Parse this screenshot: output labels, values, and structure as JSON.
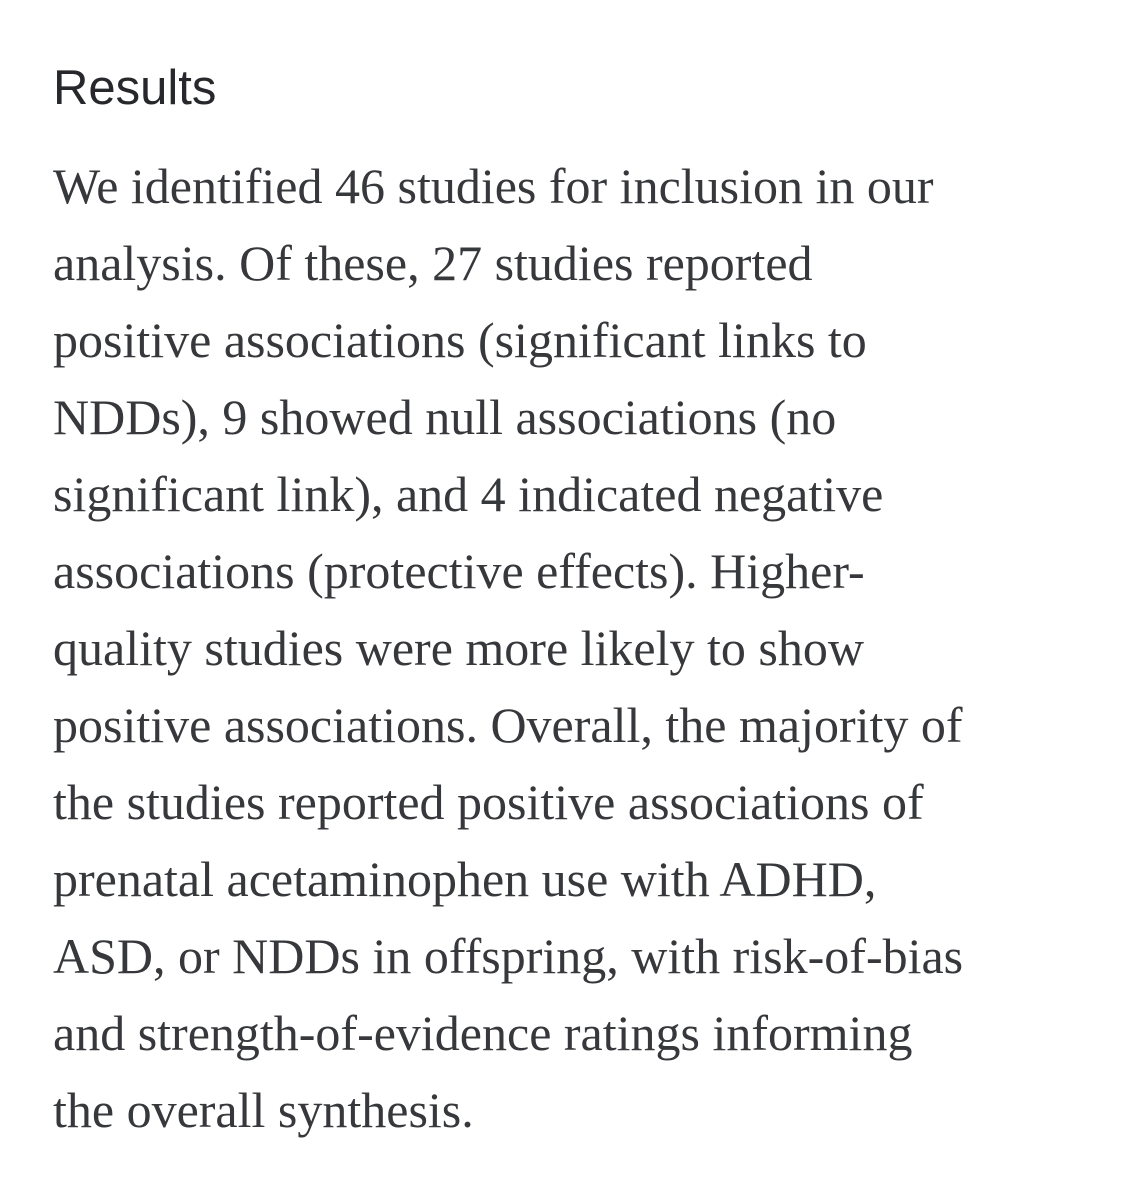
{
  "page": {
    "background_color": "#ffffff"
  },
  "heading": {
    "text": "Results",
    "color": "#26282b"
  },
  "paragraph": {
    "color": "#36383b",
    "lines": [
      "We identified 46 studies for inclusion in our",
      "analysis. Of these, 27 studies reported",
      "positive associations (significant links to",
      "NDDs), 9 showed null associations (no",
      "significant link), and 4 indicated negative",
      "associations (protective effects). Higher-",
      "quality studies were more likely to show",
      "positive associations. Overall, the majority of",
      "the studies reported positive associations of",
      "prenatal acetaminophen use with ADHD,",
      "ASD, or NDDs in offspring, with risk-of-bias",
      "and strength-of-evidence ratings informing",
      "the overall synthesis."
    ]
  }
}
